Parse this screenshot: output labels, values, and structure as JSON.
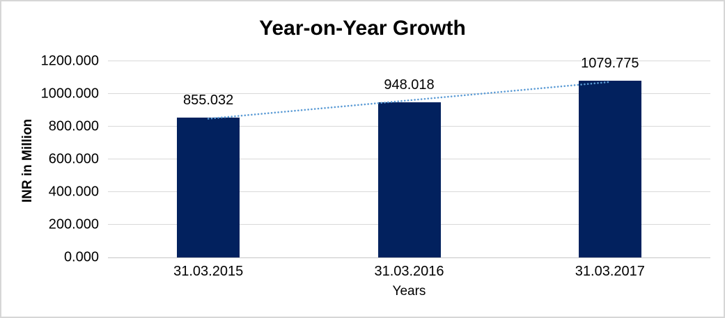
{
  "chart_data": {
    "type": "bar",
    "title": "Year-on-Year Growth",
    "xlabel": "Years",
    "ylabel": "INR in Million",
    "categories": [
      "31.03.2015",
      "31.03.2016",
      "31.03.2017"
    ],
    "values": [
      855.032,
      948.018,
      1079.775
    ],
    "value_labels": [
      "855.032",
      "948.018",
      "1079.775"
    ],
    "ylim": [
      0,
      1200
    ],
    "yticks": [
      0,
      200,
      400,
      600,
      800,
      1000,
      1200
    ],
    "ytick_labels": [
      "0.000",
      "200.000",
      "400.000",
      "600.000",
      "800.000",
      "1000.000",
      "1200.000"
    ],
    "grid": true,
    "legend": "none",
    "trendline": {
      "type": "linear",
      "style": "dotted"
    }
  },
  "colors": {
    "bar": "#02215E",
    "trendline": "#5B9BD5",
    "gridline": "#D9D9D9",
    "axis_line": "#C6C6C6",
    "text": "#000000",
    "frame_border": "#D6D6D6",
    "background": "#FFFFFF"
  }
}
